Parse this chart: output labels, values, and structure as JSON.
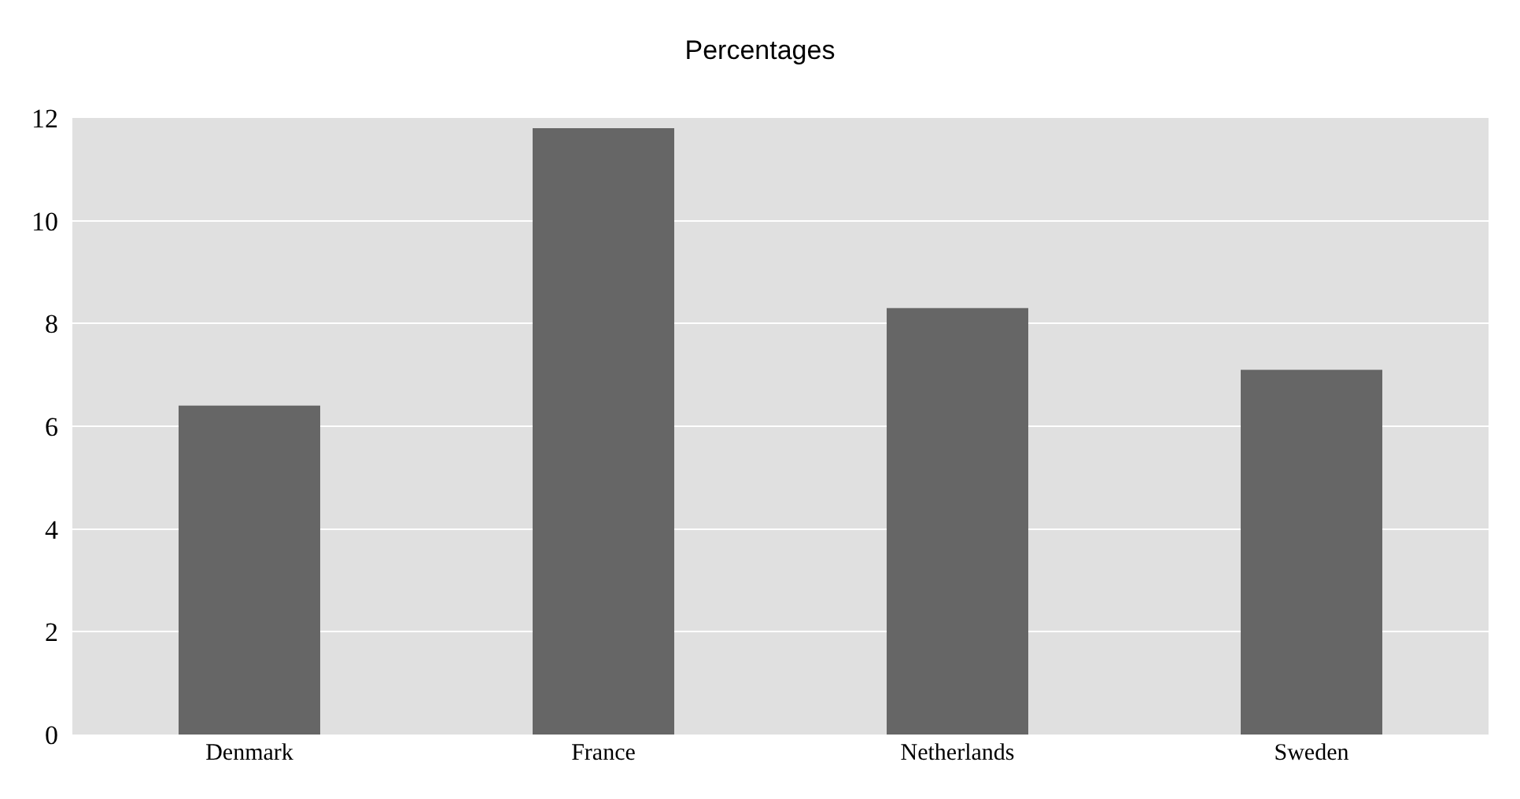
{
  "chart_data": {
    "type": "bar",
    "title": "Percentages",
    "categories": [
      "Denmark",
      "France",
      "Netherlands",
      "Sweden"
    ],
    "values": [
      6.4,
      11.8,
      8.3,
      7.1
    ],
    "color": "#666666",
    "ylim": [
      0,
      12
    ],
    "yticks": [
      0,
      2,
      4,
      6,
      8,
      10,
      12
    ],
    "grid": "y"
  }
}
